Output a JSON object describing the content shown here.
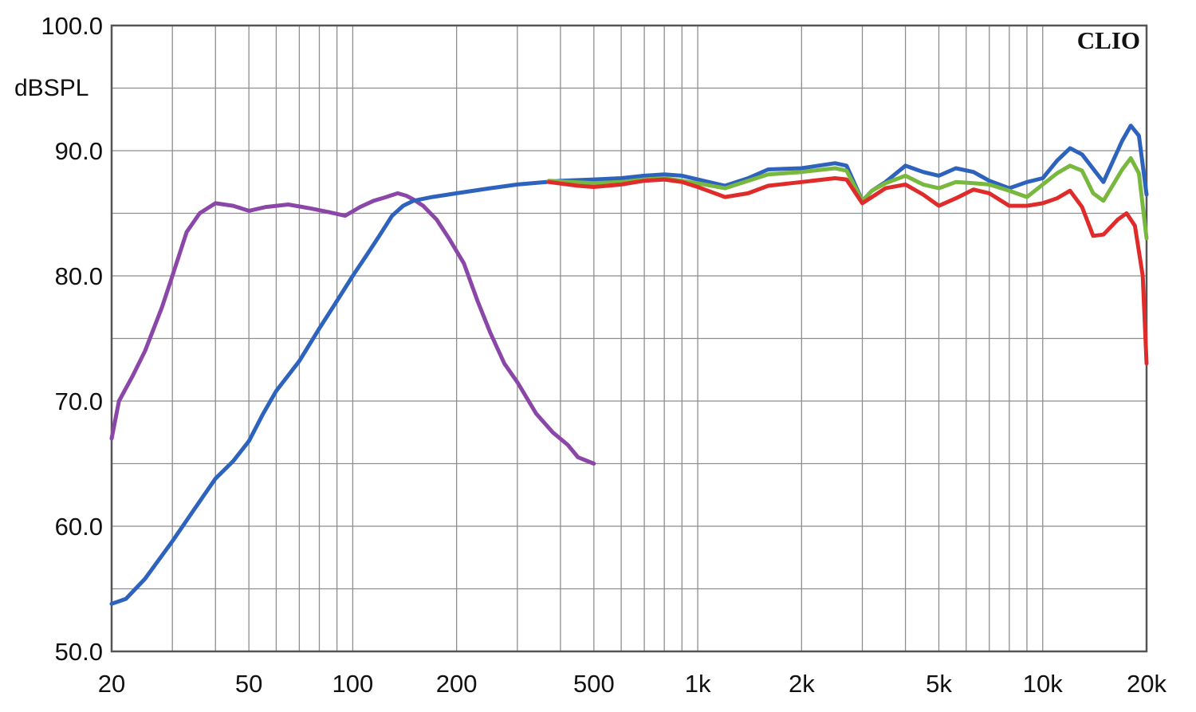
{
  "chart_data": {
    "type": "line",
    "title": "",
    "xlabel": "",
    "ylabel": "dBSPL",
    "brand": "CLIO",
    "x_scale": "log",
    "xlim": [
      20,
      20000
    ],
    "ylim": [
      50,
      100
    ],
    "grid": true,
    "legend": "none",
    "x_tick_labels": [
      {
        "value": 20,
        "label": "20"
      },
      {
        "value": 50,
        "label": "50"
      },
      {
        "value": 100,
        "label": "100"
      },
      {
        "value": 200,
        "label": "200"
      },
      {
        "value": 500,
        "label": "500"
      },
      {
        "value": 1000,
        "label": "1k"
      },
      {
        "value": 2000,
        "label": "2k"
      },
      {
        "value": 5000,
        "label": "5k"
      },
      {
        "value": 10000,
        "label": "10k"
      },
      {
        "value": 20000,
        "label": "20k"
      }
    ],
    "y_tick_labels": [
      {
        "value": 100,
        "label": "100.0"
      },
      {
        "value": 90,
        "label": "90.0"
      },
      {
        "value": 80,
        "label": "80.0"
      },
      {
        "value": 70,
        "label": "70.0"
      },
      {
        "value": 60,
        "label": "60.0"
      },
      {
        "value": 50,
        "label": "50.0"
      }
    ],
    "series": [
      {
        "color": "#8b47a8",
        "points": [
          [
            20,
            67
          ],
          [
            21,
            70
          ],
          [
            23,
            72
          ],
          [
            25,
            74
          ],
          [
            28,
            77.5
          ],
          [
            30,
            80
          ],
          [
            33,
            83.5
          ],
          [
            36,
            85
          ],
          [
            40,
            85.8
          ],
          [
            45,
            85.6
          ],
          [
            50,
            85.2
          ],
          [
            56,
            85.5
          ],
          [
            65,
            85.7
          ],
          [
            75,
            85.4
          ],
          [
            85,
            85.1
          ],
          [
            95,
            84.8
          ],
          [
            105,
            85.5
          ],
          [
            115,
            86
          ],
          [
            125,
            86.3
          ],
          [
            135,
            86.6
          ],
          [
            143,
            86.4
          ],
          [
            150,
            86.1
          ],
          [
            160,
            85.6
          ],
          [
            175,
            84.5
          ],
          [
            190,
            83
          ],
          [
            210,
            81
          ],
          [
            230,
            78
          ],
          [
            250,
            75.5
          ],
          [
            275,
            73
          ],
          [
            300,
            71.5
          ],
          [
            340,
            69
          ],
          [
            380,
            67.5
          ],
          [
            420,
            66.5
          ],
          [
            450,
            65.5
          ],
          [
            500,
            65
          ]
        ]
      },
      {
        "color": "#2e63bd",
        "points": [
          [
            20,
            53.8
          ],
          [
            22,
            54.2
          ],
          [
            25,
            55.8
          ],
          [
            30,
            58.8
          ],
          [
            35,
            61.5
          ],
          [
            40,
            63.8
          ],
          [
            45,
            65.2
          ],
          [
            50,
            66.8
          ],
          [
            55,
            69
          ],
          [
            60,
            70.8
          ],
          [
            70,
            73.2
          ],
          [
            80,
            75.8
          ],
          [
            90,
            78
          ],
          [
            100,
            80
          ],
          [
            110,
            81.7
          ],
          [
            120,
            83.3
          ],
          [
            130,
            84.8
          ],
          [
            140,
            85.6
          ],
          [
            150,
            86
          ],
          [
            170,
            86.3
          ],
          [
            200,
            86.6
          ],
          [
            250,
            87
          ],
          [
            300,
            87.3
          ],
          [
            400,
            87.6
          ],
          [
            500,
            87.7
          ],
          [
            600,
            87.8
          ],
          [
            700,
            88
          ],
          [
            800,
            88.1
          ],
          [
            900,
            88
          ],
          [
            1000,
            87.7
          ],
          [
            1200,
            87.2
          ],
          [
            1400,
            87.8
          ],
          [
            1600,
            88.5
          ],
          [
            2000,
            88.6
          ],
          [
            2500,
            89
          ],
          [
            2700,
            88.8
          ],
          [
            3000,
            86
          ],
          [
            3200,
            86.8
          ],
          [
            3500,
            87.5
          ],
          [
            4000,
            88.8
          ],
          [
            4500,
            88.3
          ],
          [
            5000,
            88
          ],
          [
            5600,
            88.6
          ],
          [
            6300,
            88.3
          ],
          [
            7000,
            87.6
          ],
          [
            8000,
            87
          ],
          [
            9000,
            87.5
          ],
          [
            10000,
            87.8
          ],
          [
            11000,
            89.2
          ],
          [
            12000,
            90.2
          ],
          [
            13000,
            89.7
          ],
          [
            15000,
            87.5
          ],
          [
            17000,
            90.8
          ],
          [
            18000,
            92
          ],
          [
            19000,
            91.2
          ],
          [
            20000,
            86.5
          ]
        ]
      },
      {
        "color": "#78b83e",
        "points": [
          [
            370,
            87.6
          ],
          [
            500,
            87.4
          ],
          [
            600,
            87.5
          ],
          [
            700,
            87.7
          ],
          [
            800,
            87.8
          ],
          [
            1000,
            87.4
          ],
          [
            1200,
            87
          ],
          [
            1400,
            87.6
          ],
          [
            1600,
            88.1
          ],
          [
            2000,
            88.3
          ],
          [
            2500,
            88.6
          ],
          [
            2700,
            88.4
          ],
          [
            3000,
            86
          ],
          [
            3200,
            86.8
          ],
          [
            3500,
            87.4
          ],
          [
            4000,
            88
          ],
          [
            4500,
            87.3
          ],
          [
            5000,
            87
          ],
          [
            5600,
            87.5
          ],
          [
            6300,
            87.4
          ],
          [
            7000,
            87.3
          ],
          [
            8000,
            86.8
          ],
          [
            9000,
            86.3
          ],
          [
            10000,
            87.3
          ],
          [
            11000,
            88.2
          ],
          [
            12000,
            88.8
          ],
          [
            13000,
            88.4
          ],
          [
            14000,
            86.6
          ],
          [
            15000,
            86
          ],
          [
            17000,
            88.5
          ],
          [
            18000,
            89.4
          ],
          [
            19000,
            88.2
          ],
          [
            20000,
            83
          ]
        ]
      },
      {
        "color": "#e02b2b",
        "points": [
          [
            370,
            87.5
          ],
          [
            450,
            87.2
          ],
          [
            500,
            87.1
          ],
          [
            600,
            87.3
          ],
          [
            700,
            87.6
          ],
          [
            800,
            87.7
          ],
          [
            900,
            87.5
          ],
          [
            1000,
            87.1
          ],
          [
            1200,
            86.3
          ],
          [
            1400,
            86.6
          ],
          [
            1600,
            87.2
          ],
          [
            2000,
            87.5
          ],
          [
            2500,
            87.8
          ],
          [
            2700,
            87.7
          ],
          [
            3000,
            85.8
          ],
          [
            3200,
            86.3
          ],
          [
            3500,
            87
          ],
          [
            4000,
            87.3
          ],
          [
            4500,
            86.5
          ],
          [
            5000,
            85.6
          ],
          [
            5600,
            86.2
          ],
          [
            6300,
            86.9
          ],
          [
            7000,
            86.6
          ],
          [
            8000,
            85.6
          ],
          [
            9000,
            85.6
          ],
          [
            10000,
            85.8
          ],
          [
            11000,
            86.2
          ],
          [
            12000,
            86.8
          ],
          [
            13000,
            85.5
          ],
          [
            14000,
            83.2
          ],
          [
            15000,
            83.3
          ],
          [
            16500,
            84.5
          ],
          [
            17500,
            85
          ],
          [
            18500,
            84
          ],
          [
            19500,
            80
          ],
          [
            20000,
            73
          ]
        ]
      }
    ]
  }
}
